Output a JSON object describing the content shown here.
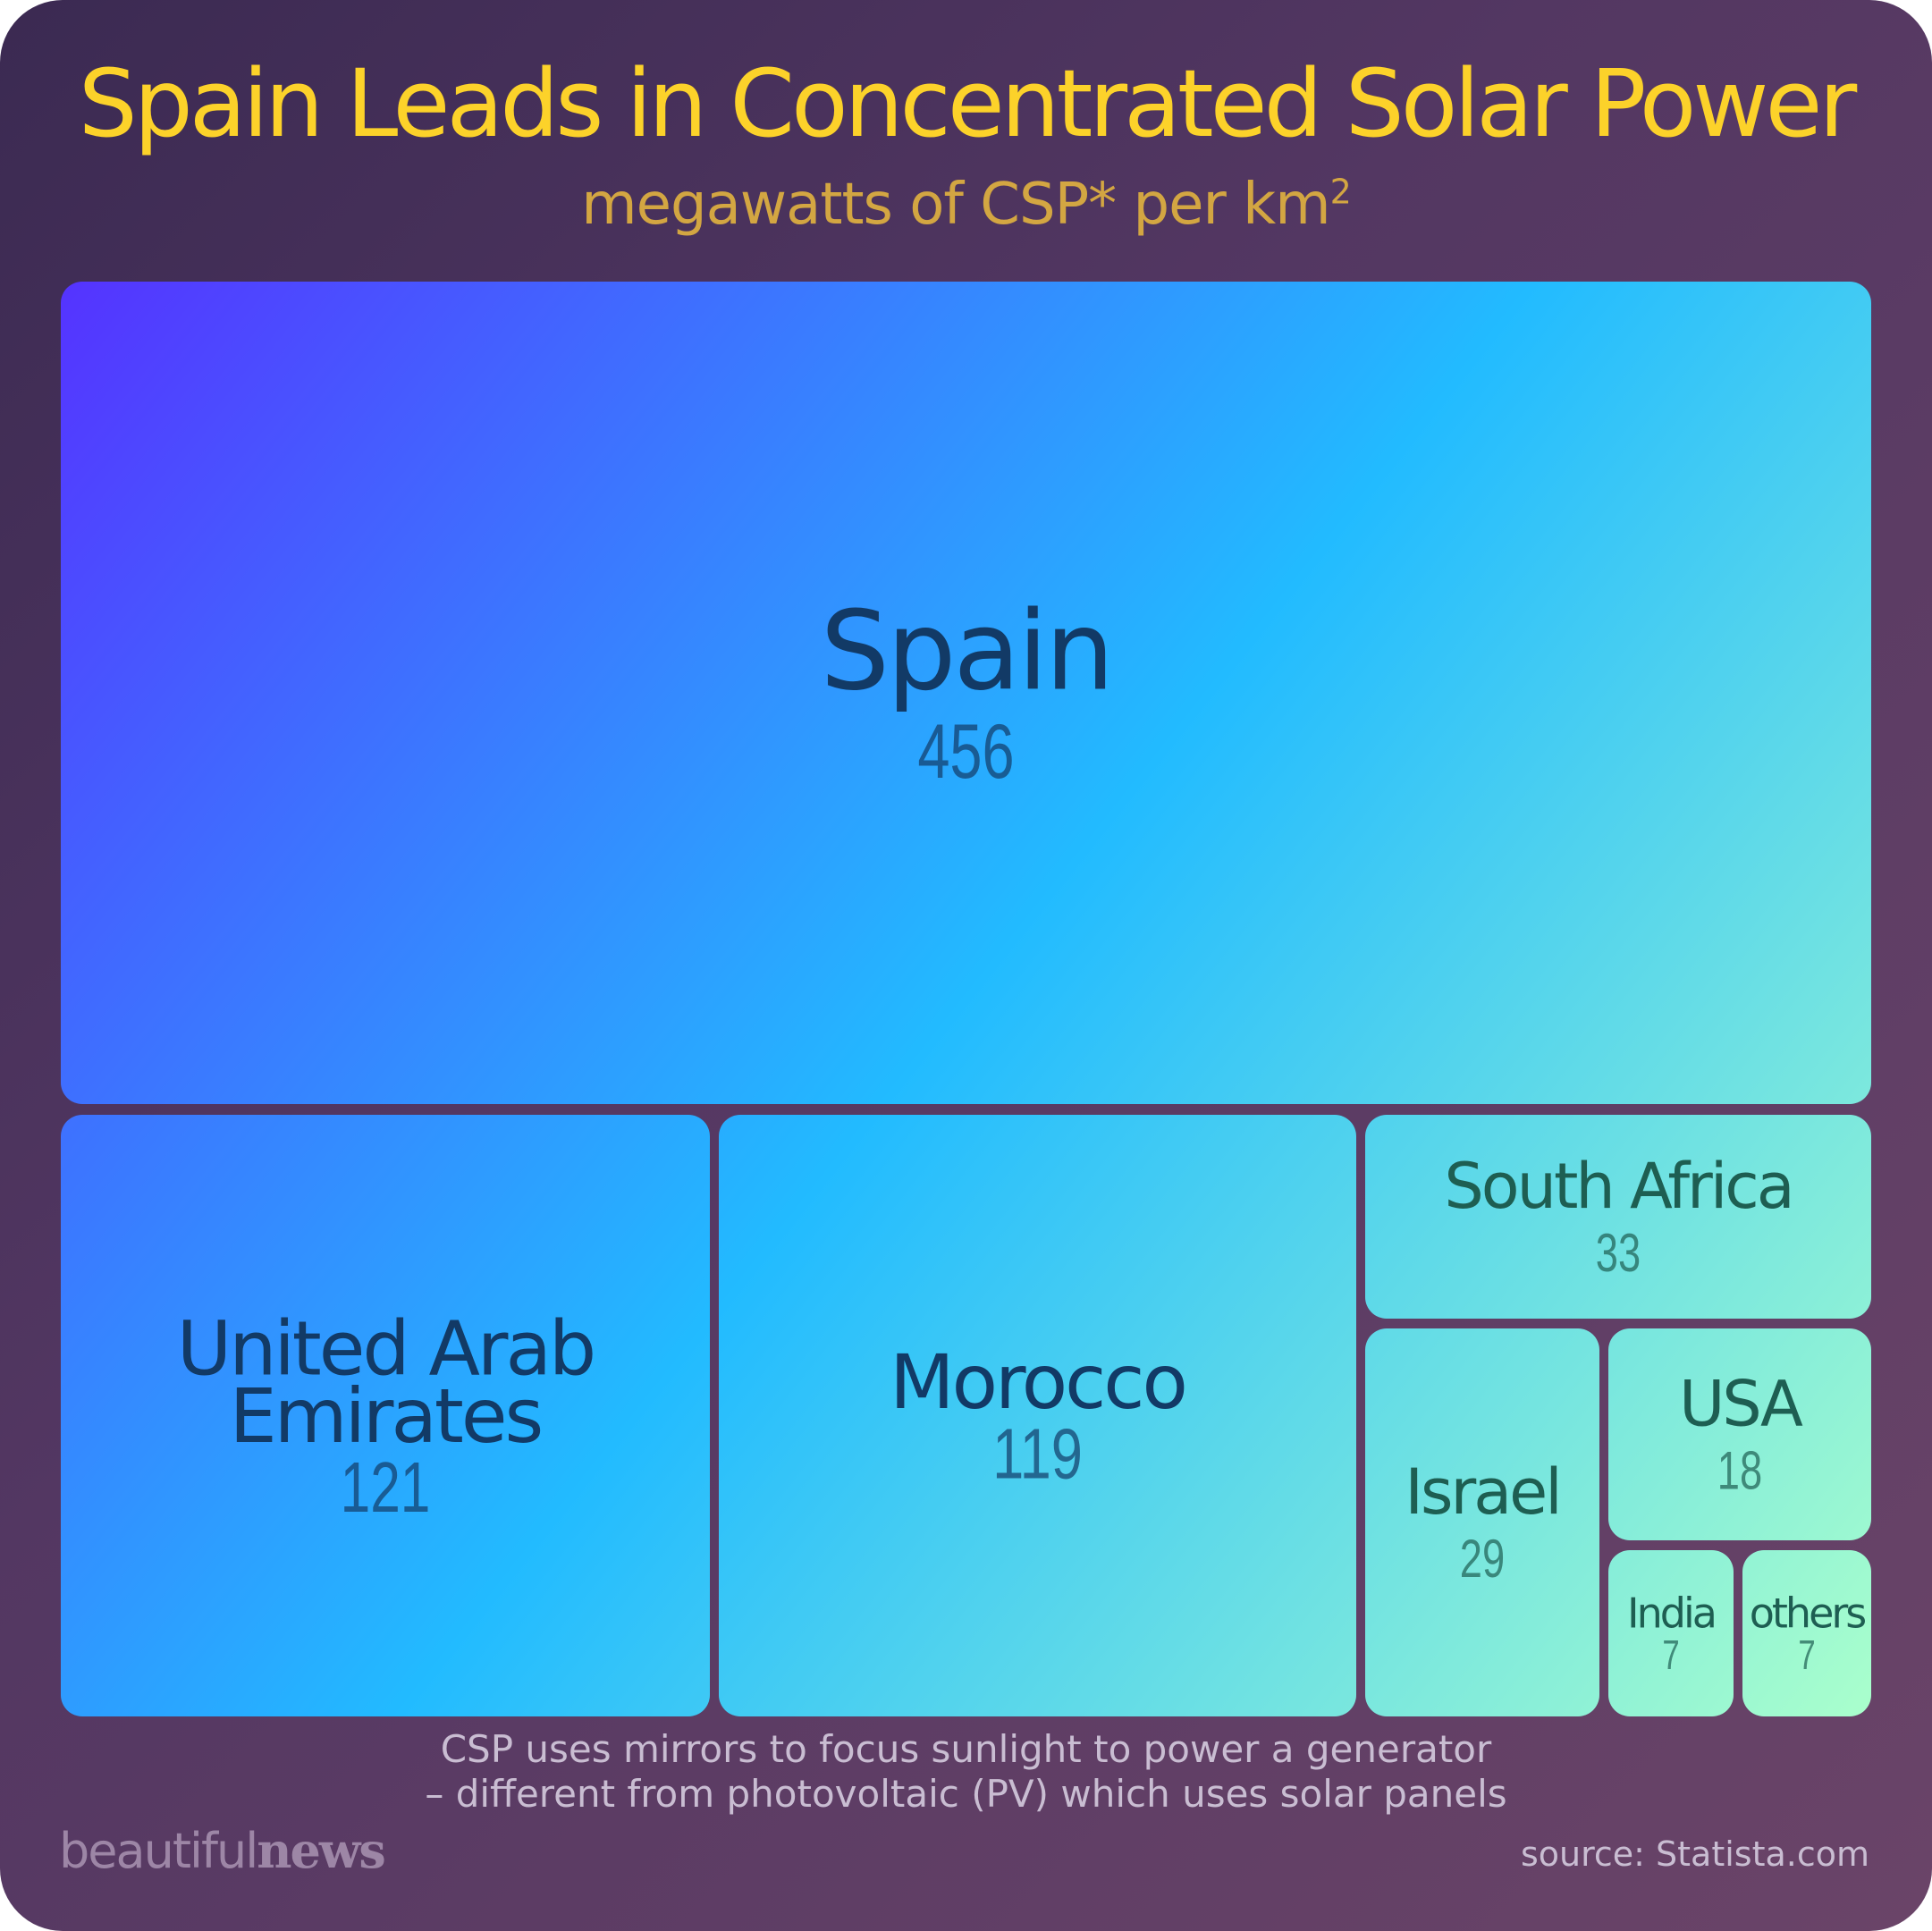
{
  "title": "Spain Leads in Concentrated Solar Power",
  "subtitle": {
    "text": "megawatts of CSP* per km",
    "superscript": "2"
  },
  "chart_data": {
    "type": "treemap",
    "title": "Spain Leads in Concentrated Solar Power",
    "subtitle": "megawatts of CSP* per km2",
    "items": [
      {
        "label": "Spain",
        "value": 456
      },
      {
        "label": "United Arab Emirates",
        "value": 121
      },
      {
        "label": "Morocco",
        "value": 119
      },
      {
        "label": "South Africa",
        "value": 33
      },
      {
        "label": "Israel",
        "value": 29
      },
      {
        "label": "USA",
        "value": 18
      },
      {
        "label": "India",
        "value": 7
      },
      {
        "label": "others",
        "value": 7
      }
    ],
    "colors": {
      "gradient_start": "#5533ff",
      "gradient_mid": "#22bbff",
      "gradient_end": "#aaffcc",
      "label_dark": "#123a66",
      "label_light": "#1e5e52"
    }
  },
  "footnote": {
    "line1": "CSP uses mirrors to focus sunlight to power a generator",
    "line2": "– different from photovoltaic (PV) which uses solar panels"
  },
  "brand": {
    "light": "beautiful",
    "bold": "news"
  },
  "source": "source: Statista.com"
}
